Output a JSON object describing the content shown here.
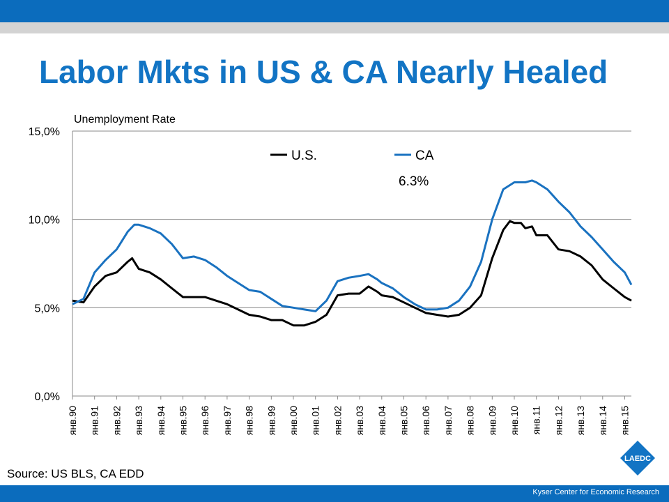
{
  "page": {
    "title": "Labor Mkts in US & CA Nearly Healed",
    "source": "Source: US BLS, CA EDD",
    "footer": "Kyser Center for Economic Research",
    "logo_text": "LAEDC"
  },
  "colors": {
    "accent": "#1274c4",
    "bar": "#0b6cbd",
    "stripe": "#d3d3d3",
    "us": "#000000",
    "ca": "#1a72c0"
  },
  "chart_data": {
    "type": "line",
    "ylabel": "Unemployment Rate",
    "ylim": [
      0,
      15
    ],
    "yticks": [
      "0,0%",
      "5,0%",
      "10,0%",
      "15,0%"
    ],
    "ytick_values": [
      0,
      5,
      10,
      15
    ],
    "xlim": [
      1990.0,
      2015.3
    ],
    "xticks": [
      "янв.90",
      "янв.91",
      "янв.92",
      "янв.93",
      "янв.94",
      "янв.95",
      "янв.96",
      "янв.97",
      "янв.98",
      "янв.99",
      "янв.00",
      "янв.01",
      "янв.02",
      "янв.03",
      "янв.04",
      "янв.05",
      "янв.06",
      "янв.07",
      "янв.08",
      "янв.09",
      "янв.10",
      "янв.11",
      "янв.12",
      "янв.13",
      "янв.14",
      "янв.15"
    ],
    "annotation": "6.3%",
    "grid": true,
    "legend_position": "top-center",
    "series": [
      {
        "name": "U.S.",
        "color": "#000000",
        "points": [
          [
            1990.0,
            5.4
          ],
          [
            1990.5,
            5.3
          ],
          [
            1991.0,
            6.2
          ],
          [
            1991.5,
            6.8
          ],
          [
            1992.0,
            7.0
          ],
          [
            1992.5,
            7.6
          ],
          [
            1992.7,
            7.8
          ],
          [
            1993.0,
            7.2
          ],
          [
            1993.5,
            7.0
          ],
          [
            1994.0,
            6.6
          ],
          [
            1994.5,
            6.1
          ],
          [
            1995.0,
            5.6
          ],
          [
            1995.5,
            5.6
          ],
          [
            1996.0,
            5.6
          ],
          [
            1996.5,
            5.4
          ],
          [
            1997.0,
            5.2
          ],
          [
            1997.5,
            4.9
          ],
          [
            1998.0,
            4.6
          ],
          [
            1998.5,
            4.5
          ],
          [
            1999.0,
            4.3
          ],
          [
            1999.5,
            4.3
          ],
          [
            2000.0,
            4.0
          ],
          [
            2000.5,
            4.0
          ],
          [
            2001.0,
            4.2
          ],
          [
            2001.5,
            4.6
          ],
          [
            2002.0,
            5.7
          ],
          [
            2002.5,
            5.8
          ],
          [
            2003.0,
            5.8
          ],
          [
            2003.4,
            6.2
          ],
          [
            2003.8,
            5.9
          ],
          [
            2004.0,
            5.7
          ],
          [
            2004.5,
            5.6
          ],
          [
            2005.0,
            5.3
          ],
          [
            2005.5,
            5.0
          ],
          [
            2006.0,
            4.7
          ],
          [
            2006.5,
            4.6
          ],
          [
            2007.0,
            4.5
          ],
          [
            2007.5,
            4.6
          ],
          [
            2008.0,
            5.0
          ],
          [
            2008.5,
            5.7
          ],
          [
            2009.0,
            7.8
          ],
          [
            2009.5,
            9.4
          ],
          [
            2009.8,
            9.9
          ],
          [
            2010.0,
            9.8
          ],
          [
            2010.3,
            9.8
          ],
          [
            2010.5,
            9.5
          ],
          [
            2010.8,
            9.6
          ],
          [
            2011.0,
            9.1
          ],
          [
            2011.5,
            9.1
          ],
          [
            2012.0,
            8.3
          ],
          [
            2012.5,
            8.2
          ],
          [
            2013.0,
            7.9
          ],
          [
            2013.5,
            7.4
          ],
          [
            2014.0,
            6.6
          ],
          [
            2014.5,
            6.1
          ],
          [
            2015.0,
            5.6
          ],
          [
            2015.3,
            5.4
          ]
        ]
      },
      {
        "name": "CA",
        "color": "#1a72c0",
        "points": [
          [
            1990.0,
            5.2
          ],
          [
            1990.5,
            5.5
          ],
          [
            1991.0,
            7.0
          ],
          [
            1991.5,
            7.7
          ],
          [
            1992.0,
            8.3
          ],
          [
            1992.5,
            9.3
          ],
          [
            1992.8,
            9.7
          ],
          [
            1993.0,
            9.7
          ],
          [
            1993.5,
            9.5
          ],
          [
            1994.0,
            9.2
          ],
          [
            1994.5,
            8.6
          ],
          [
            1995.0,
            7.8
          ],
          [
            1995.5,
            7.9
          ],
          [
            1996.0,
            7.7
          ],
          [
            1996.5,
            7.3
          ],
          [
            1997.0,
            6.8
          ],
          [
            1997.5,
            6.4
          ],
          [
            1998.0,
            6.0
          ],
          [
            1998.5,
            5.9
          ],
          [
            1999.0,
            5.5
          ],
          [
            1999.5,
            5.1
          ],
          [
            2000.0,
            5.0
          ],
          [
            2000.5,
            4.9
          ],
          [
            2001.0,
            4.8
          ],
          [
            2001.5,
            5.4
          ],
          [
            2002.0,
            6.5
          ],
          [
            2002.5,
            6.7
          ],
          [
            2003.0,
            6.8
          ],
          [
            2003.4,
            6.9
          ],
          [
            2003.8,
            6.6
          ],
          [
            2004.0,
            6.4
          ],
          [
            2004.5,
            6.1
          ],
          [
            2005.0,
            5.6
          ],
          [
            2005.5,
            5.2
          ],
          [
            2006.0,
            4.9
          ],
          [
            2006.5,
            4.9
          ],
          [
            2007.0,
            5.0
          ],
          [
            2007.5,
            5.4
          ],
          [
            2008.0,
            6.2
          ],
          [
            2008.5,
            7.6
          ],
          [
            2009.0,
            10.0
          ],
          [
            2009.5,
            11.7
          ],
          [
            2010.0,
            12.1
          ],
          [
            2010.5,
            12.1
          ],
          [
            2010.8,
            12.2
          ],
          [
            2011.0,
            12.1
          ],
          [
            2011.5,
            11.7
          ],
          [
            2012.0,
            11.0
          ],
          [
            2012.5,
            10.4
          ],
          [
            2013.0,
            9.6
          ],
          [
            2013.5,
            9.0
          ],
          [
            2014.0,
            8.3
          ],
          [
            2014.5,
            7.6
          ],
          [
            2015.0,
            7.0
          ],
          [
            2015.3,
            6.3
          ]
        ]
      }
    ]
  }
}
